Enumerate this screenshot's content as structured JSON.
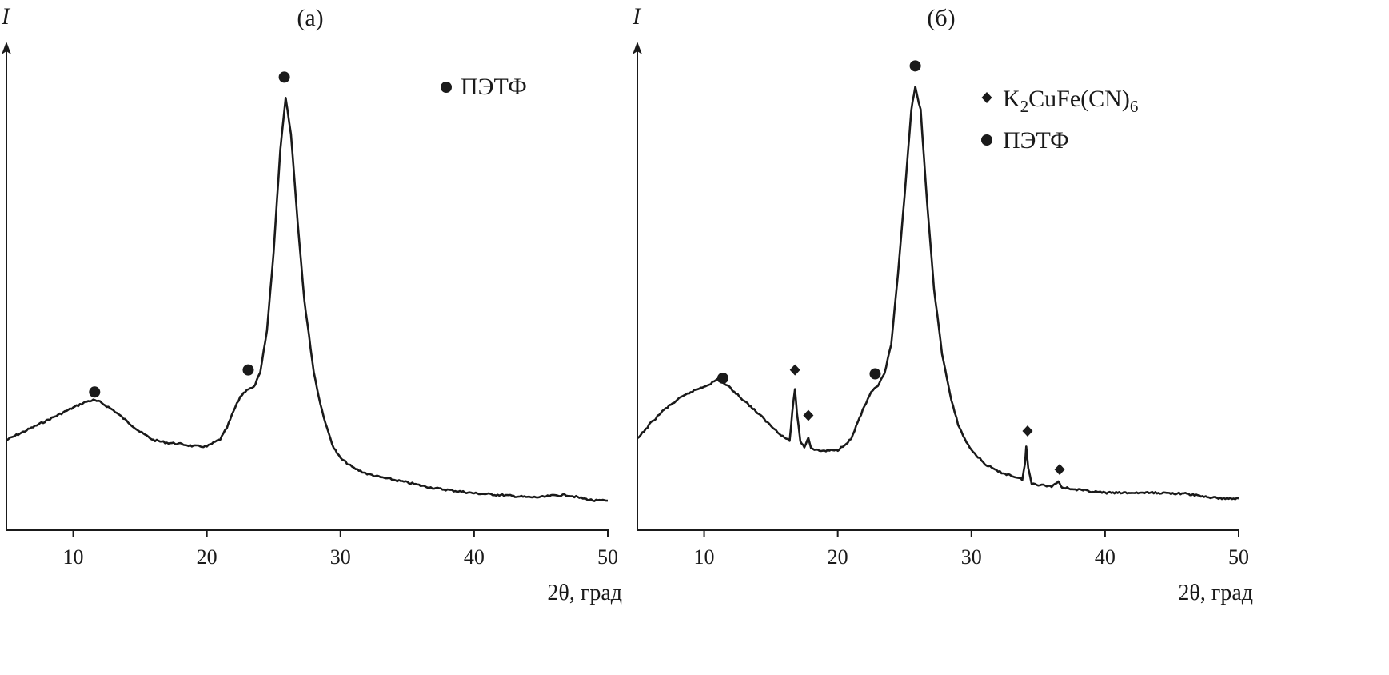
{
  "chart_data": [
    {
      "type": "line",
      "panel_label": "(а)",
      "ylabel": "I",
      "xlabel": "2θ, град",
      "xlim": [
        5,
        50
      ],
      "ylim": [
        0,
        100
      ],
      "xticks": [
        10,
        20,
        30,
        40,
        50
      ],
      "yticks_shown": false,
      "grid": false,
      "legend_position": "top-right",
      "legend": [
        {
          "marker": "circle",
          "label": "ПЭТФ"
        }
      ],
      "series": [
        {
          "color": "#1a1a1a",
          "points": [
            [
              5,
              17.5
            ],
            [
              6,
              19.0
            ],
            [
              7,
              20.5
            ],
            [
              8,
              22.0
            ],
            [
              9,
              23.5
            ],
            [
              10,
              25.0
            ],
            [
              11,
              26.4
            ],
            [
              11.5,
              26.7
            ],
            [
              12,
              26.3
            ],
            [
              13,
              24.4
            ],
            [
              14,
              21.9
            ],
            [
              15,
              19.4
            ],
            [
              16,
              17.5
            ],
            [
              17,
              16.9
            ],
            [
              18,
              16.6
            ],
            [
              19,
              16.1
            ],
            [
              20,
              16.0
            ],
            [
              21,
              17.7
            ],
            [
              21.5,
              20.3
            ],
            [
              22,
              24.2
            ],
            [
              22.5,
              27.5
            ],
            [
              23,
              29.2
            ],
            [
              23.5,
              29.6
            ],
            [
              24,
              33.0
            ],
            [
              24.5,
              42.8
            ],
            [
              25,
              60.9
            ],
            [
              25.5,
              84.7
            ],
            [
              25.9,
              96.7
            ],
            [
              26.3,
              88.4
            ],
            [
              26.8,
              68.0
            ],
            [
              27.3,
              49.8
            ],
            [
              28,
              33.3
            ],
            [
              28.5,
              25.8
            ],
            [
              29,
              20.1
            ],
            [
              29.5,
              15.7
            ],
            [
              30,
              13.3
            ],
            [
              31,
              11.0
            ],
            [
              32,
              9.7
            ],
            [
              33,
              8.9
            ],
            [
              34,
              8.3
            ],
            [
              35,
              7.7
            ],
            [
              36,
              7.0
            ],
            [
              37,
              6.4
            ],
            [
              38,
              6.0
            ],
            [
              40,
              5.2
            ],
            [
              42,
              4.8
            ],
            [
              44,
              4.3
            ],
            [
              45,
              4.3
            ],
            [
              46,
              4.7
            ],
            [
              47,
              4.8
            ],
            [
              48,
              4.1
            ],
            [
              49,
              3.5
            ],
            [
              50,
              3.5
            ]
          ]
        }
      ],
      "annotations": [
        {
          "marker": "circle",
          "x": 11.6,
          "y": 28.6
        },
        {
          "marker": "circle",
          "x": 23.1,
          "y": 33.7
        },
        {
          "marker": "circle",
          "x": 25.8,
          "y": 101.4
        }
      ]
    },
    {
      "type": "line",
      "panel_label": "(б)",
      "ylabel": "I",
      "xlabel": "2θ, град",
      "xlim": [
        5,
        50
      ],
      "ylim": [
        0,
        100
      ],
      "xticks": [
        10,
        20,
        30,
        40,
        50
      ],
      "yticks_shown": false,
      "grid": false,
      "legend_position": "top-right",
      "legend": [
        {
          "marker": "diamond",
          "label_main": "K",
          "label_sub1": "2",
          "label_mid": "CuFe(CN)",
          "label_sub2": "6"
        },
        {
          "marker": "circle",
          "label": "ПЭТФ"
        }
      ],
      "series": [
        {
          "color": "#1a1a1a",
          "points": [
            [
              5,
              17.7
            ],
            [
              6,
              21.4
            ],
            [
              7,
              24.5
            ],
            [
              8,
              26.8
            ],
            [
              9,
              28.6
            ],
            [
              10,
              29.9
            ],
            [
              10.5,
              30.6
            ],
            [
              11,
              31.5
            ],
            [
              11.5,
              30.6
            ],
            [
              12,
              29.4
            ],
            [
              13,
              26.6
            ],
            [
              14,
              23.8
            ],
            [
              15,
              20.8
            ],
            [
              16,
              18.1
            ],
            [
              16.4,
              17.4
            ],
            [
              16.6,
              23.8
            ],
            [
              16.8,
              29.4
            ],
            [
              16.95,
              23.8
            ],
            [
              17.2,
              17.2
            ],
            [
              17.5,
              15.9
            ],
            [
              17.8,
              18.1
            ],
            [
              18,
              15.7
            ],
            [
              18.5,
              15.1
            ],
            [
              19,
              15.0
            ],
            [
              20,
              15.2
            ],
            [
              21,
              17.7
            ],
            [
              21.5,
              21.7
            ],
            [
              22,
              25.3
            ],
            [
              22.5,
              28.4
            ],
            [
              23,
              30.1
            ],
            [
              23.5,
              32.8
            ],
            [
              24,
              39.6
            ],
            [
              24.5,
              55.6
            ],
            [
              25,
              74.1
            ],
            [
              25.5,
              93.8
            ],
            [
              25.8,
              99.0
            ],
            [
              26.2,
              93.8
            ],
            [
              26.7,
              71.7
            ],
            [
              27.2,
              52.6
            ],
            [
              27.8,
              37.5
            ],
            [
              28.5,
              26.6
            ],
            [
              29,
              21.2
            ],
            [
              29.5,
              17.7
            ],
            [
              30,
              15.2
            ],
            [
              31,
              12.0
            ],
            [
              32,
              10.2
            ],
            [
              33,
              9.3
            ],
            [
              33.8,
              8.4
            ],
            [
              34,
              11.9
            ],
            [
              34.1,
              15.9
            ],
            [
              34.25,
              11.1
            ],
            [
              34.5,
              7.6
            ],
            [
              35,
              7.2
            ],
            [
              36,
              6.8
            ],
            [
              36.5,
              7.9
            ],
            [
              36.8,
              6.6
            ],
            [
              38,
              6.0
            ],
            [
              40,
              5.3
            ],
            [
              42,
              5.3
            ],
            [
              44,
              5.3
            ],
            [
              46,
              5.1
            ],
            [
              48,
              4.2
            ],
            [
              49,
              4.0
            ],
            [
              50,
              4.0
            ]
          ]
        }
      ],
      "annotations": [
        {
          "marker": "circle",
          "x": 11.4,
          "y": 31.8
        },
        {
          "marker": "diamond",
          "x": 16.8,
          "y": 33.7
        },
        {
          "marker": "diamond",
          "x": 17.8,
          "y": 23.2
        },
        {
          "marker": "circle",
          "x": 22.8,
          "y": 32.8
        },
        {
          "marker": "circle",
          "x": 25.8,
          "y": 104.0
        },
        {
          "marker": "diamond",
          "x": 34.2,
          "y": 19.6
        },
        {
          "marker": "diamond",
          "x": 36.6,
          "y": 10.7
        }
      ]
    }
  ]
}
